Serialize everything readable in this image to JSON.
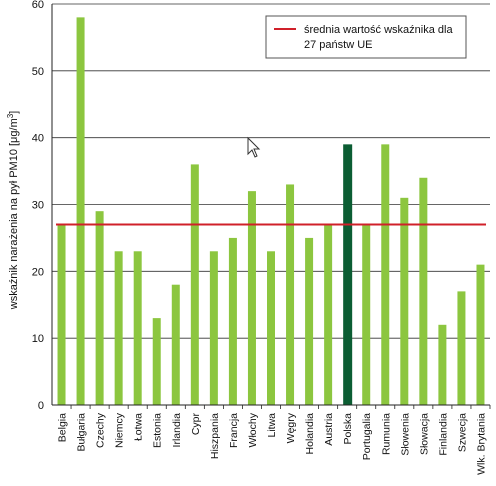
{
  "chart_data": {
    "type": "bar",
    "categories": [
      "Belgia",
      "Bułgaria",
      "Czechy",
      "Niemcy",
      "Łotwa",
      "Estonia",
      "Irlandia",
      "Cypr",
      "Hiszpania",
      "Francja",
      "Włochy",
      "Litwa",
      "Węgry",
      "Holandia",
      "Austria",
      "Polska",
      "Portugalia",
      "Rumunia",
      "Słowenia",
      "Słowacja",
      "Finlandia",
      "Szwecja",
      "Wlk. Brytania"
    ],
    "values": [
      27,
      58,
      29,
      23,
      23,
      13,
      18,
      36,
      23,
      25,
      32,
      23,
      33,
      25,
      27,
      39,
      27,
      39,
      31,
      34,
      12,
      17,
      21
    ],
    "highlight_category": "Polska",
    "ylabel_main": "wskaźnik narażenia na pył PM10 [μg/m",
    "ylabel_sup": "3",
    "ylabel_end": "]",
    "ylim": [
      0,
      60
    ],
    "yticks": [
      0,
      10,
      20,
      30,
      40,
      50,
      60
    ],
    "grid": "horizontal",
    "reference_line": {
      "value": 27,
      "label_line1": "średnia wartość wskaźnika dla",
      "label_line2": "27 państw UE"
    },
    "legend_position": "top-right",
    "colors": {
      "bar": "#8cc63f",
      "highlight": "#0b5d33",
      "reference_line": "#d0202a",
      "grid": "#333333"
    }
  }
}
